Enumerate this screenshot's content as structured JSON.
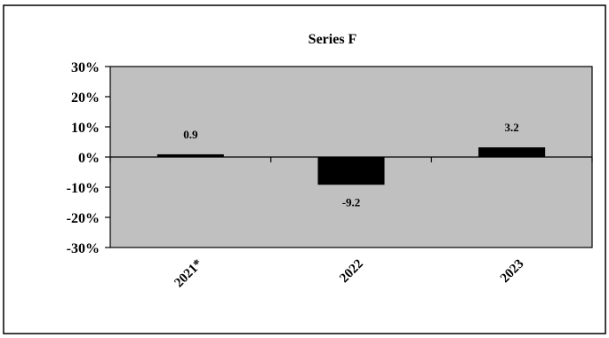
{
  "chart_data": {
    "type": "bar",
    "title": "Series F",
    "xlabel": "",
    "ylabel": "",
    "categories": [
      "2021*",
      "2022",
      "2023"
    ],
    "values": [
      0.9,
      -9.2,
      3.2
    ],
    "data_labels": [
      "0.9",
      "-9.2",
      "3.2"
    ],
    "ylim": [
      -30,
      30
    ],
    "yticks": [
      30,
      20,
      10,
      0,
      -10,
      -20,
      -30
    ],
    "ytick_labels": [
      "30%",
      "20%",
      "10%",
      "0%",
      "-10%",
      "-20%",
      "-30%"
    ],
    "grid": false,
    "legend": "none",
    "colors": {
      "plot_background": "#c0c0c0",
      "bar": "#000000",
      "frame": "#000000"
    }
  }
}
